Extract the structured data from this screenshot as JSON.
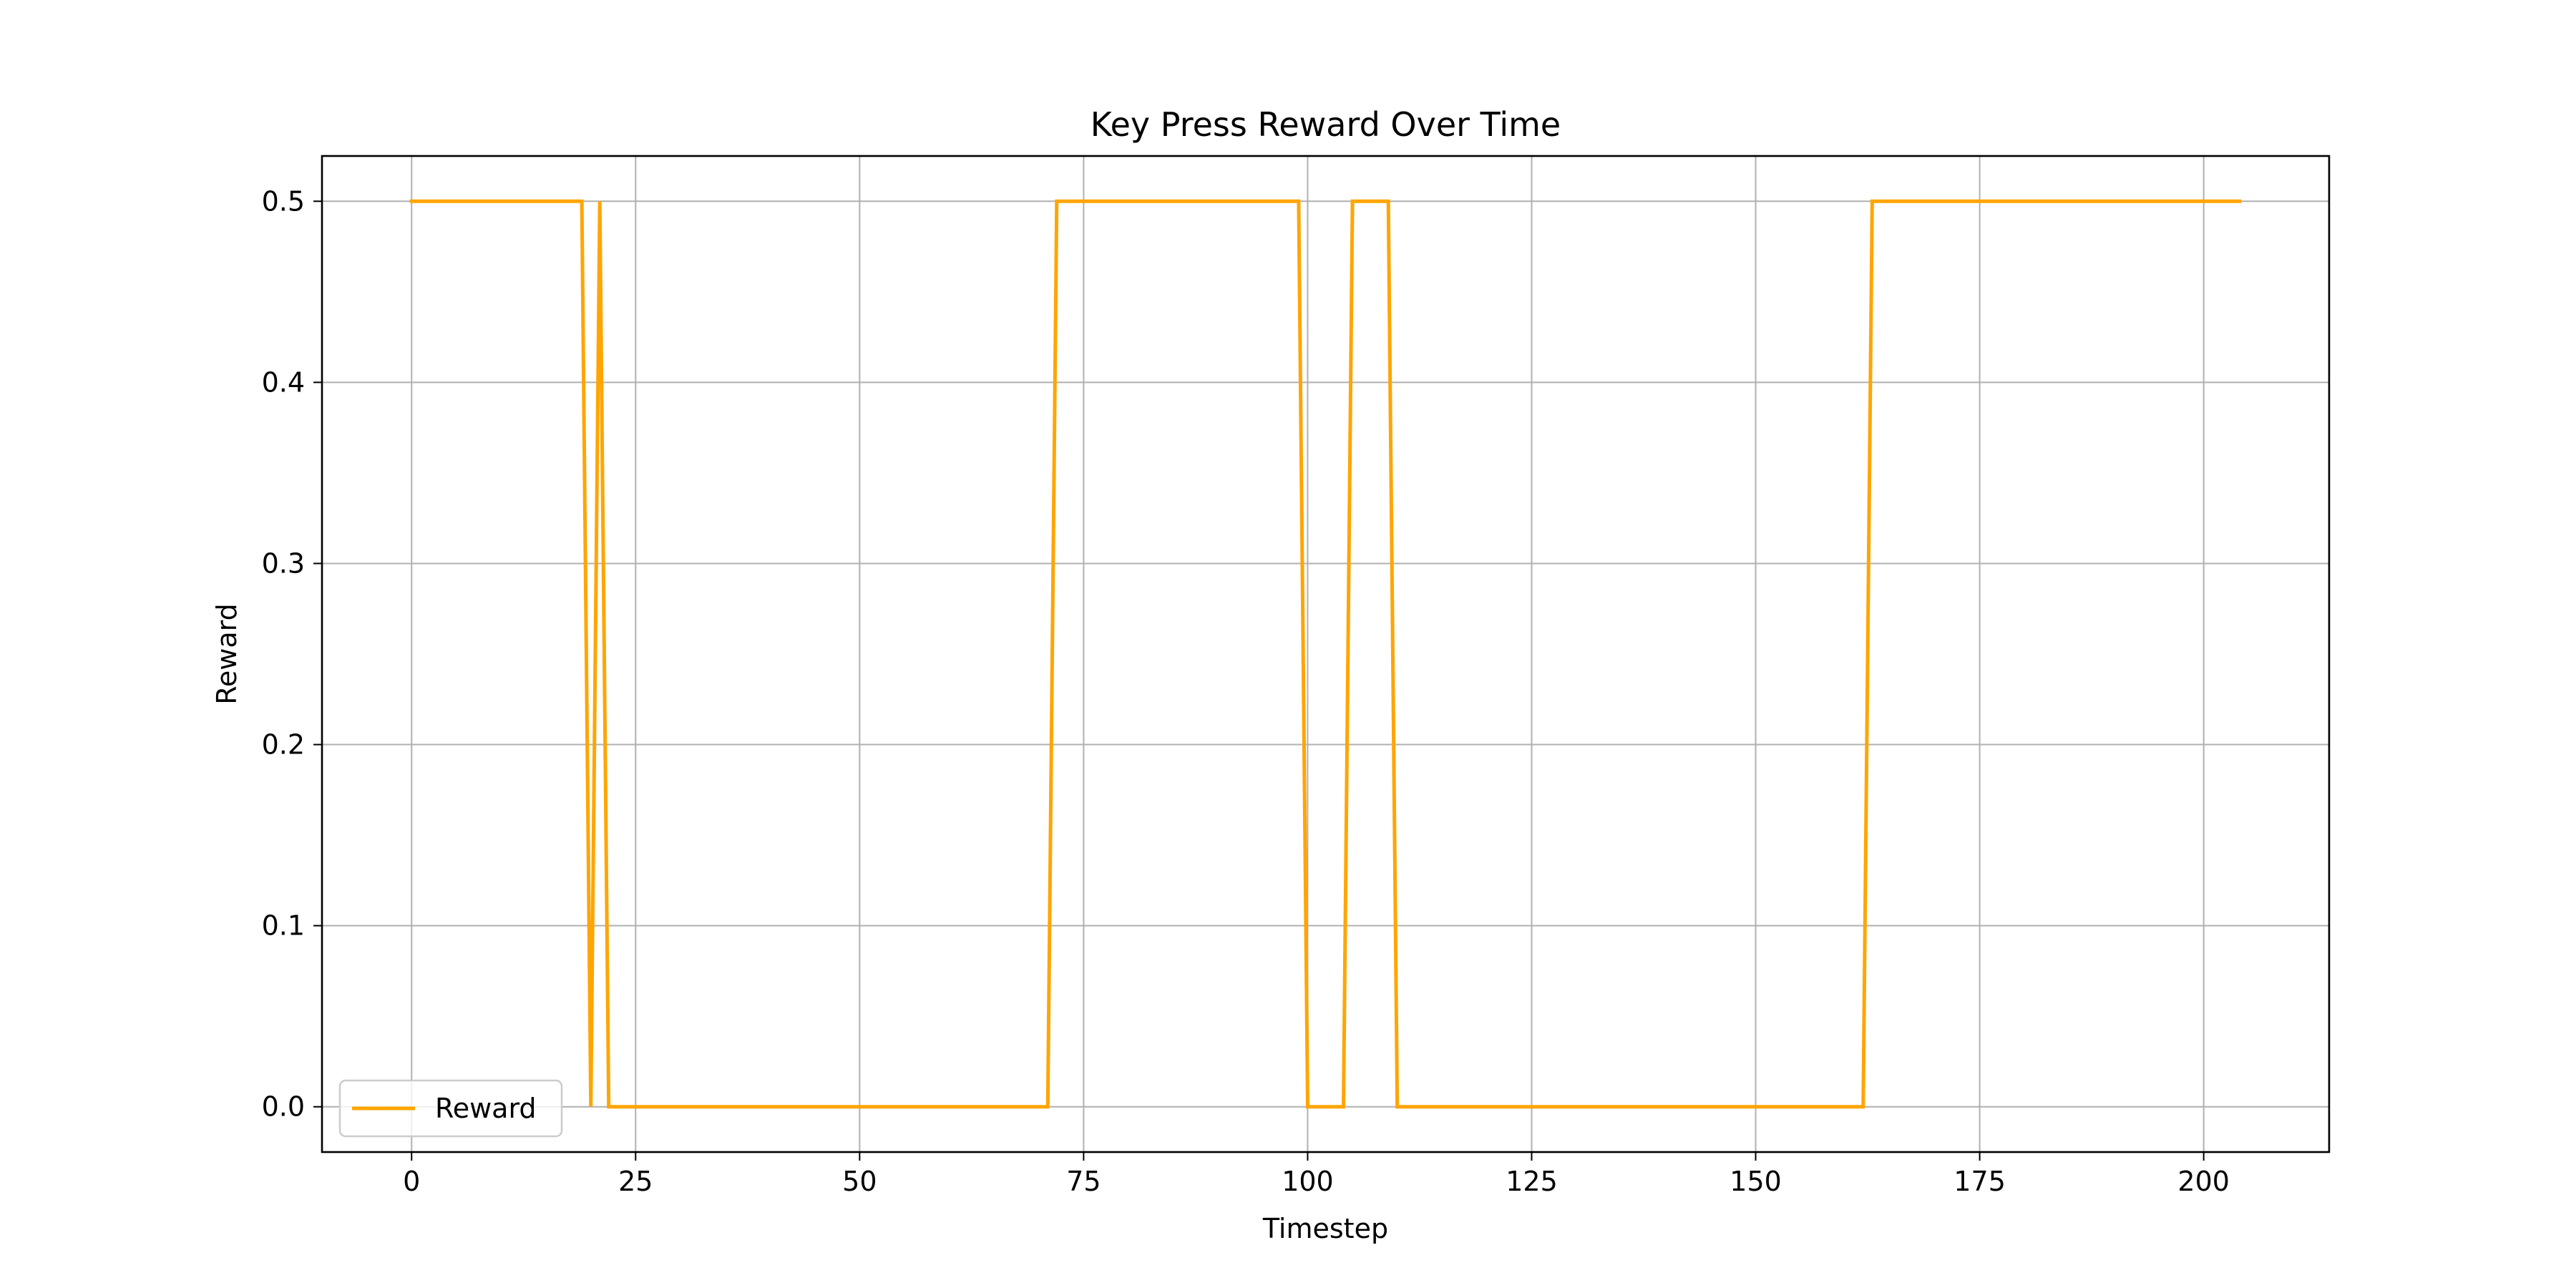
{
  "chart_data": {
    "type": "line",
    "title": "Key Press Reward Over Time",
    "xlabel": "Timestep",
    "ylabel": "Reward",
    "xlim": [
      -10,
      214
    ],
    "ylim": [
      -0.025,
      0.525
    ],
    "xticks": [
      0,
      25,
      50,
      75,
      100,
      125,
      150,
      175,
      200
    ],
    "yticks": [
      0.0,
      0.1,
      0.2,
      0.3,
      0.4,
      0.5
    ],
    "ytick_labels": [
      "0.0",
      "0.1",
      "0.2",
      "0.3",
      "0.4",
      "0.5"
    ],
    "grid": true,
    "legend_position": "lower-left",
    "series": [
      {
        "name": "Reward",
        "color": "#ffa500",
        "x": [
          0,
          19,
          20,
          21,
          22,
          71,
          72,
          99,
          100,
          104,
          105,
          109,
          110,
          162,
          163,
          204
        ],
        "y": [
          0.5,
          0.5,
          0.0,
          0.5,
          0.0,
          0.0,
          0.5,
          0.5,
          0.0,
          0.0,
          0.5,
          0.5,
          0.0,
          0.0,
          0.5,
          0.5
        ]
      }
    ]
  }
}
